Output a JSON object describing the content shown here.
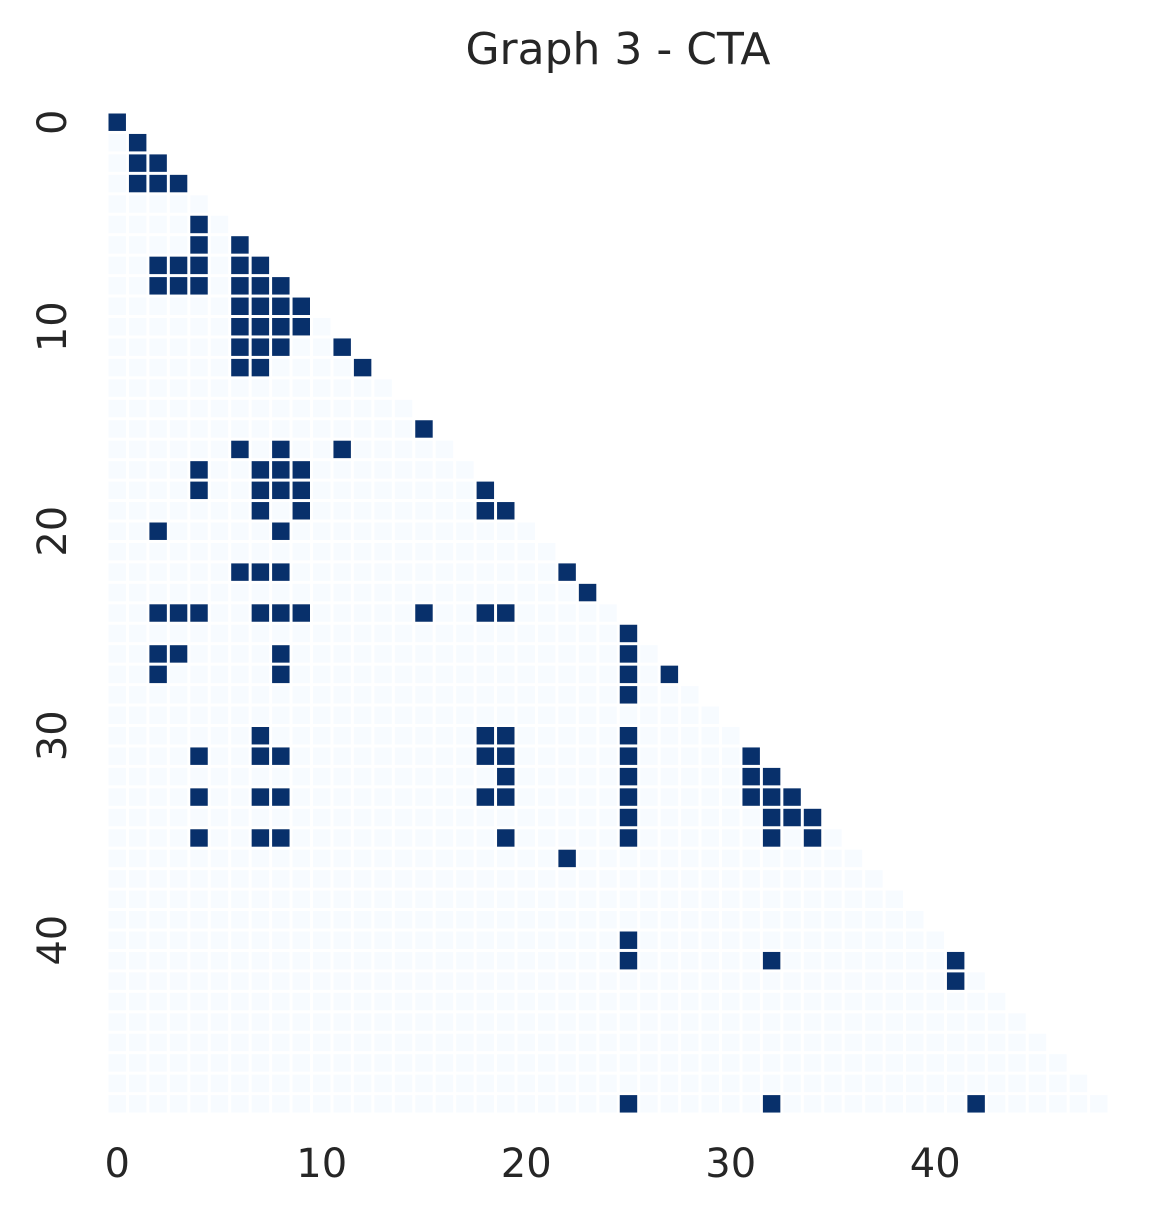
{
  "chart_data": {
    "type": "heatmap",
    "title": "Graph 3 - CTA",
    "colors": [
      "#f7fbff",
      "#08306b"
    ],
    "xticks": [
      0,
      10,
      20,
      30,
      40
    ],
    "yticks": [
      0,
      10,
      20,
      30,
      40
    ],
    "z": [
      [
        1
      ],
      [
        0,
        1
      ],
      [
        0,
        1,
        1
      ],
      [
        0,
        1,
        1,
        1
      ],
      [
        0,
        0,
        0,
        0,
        0
      ],
      [
        0,
        0,
        0,
        0,
        1,
        0
      ],
      [
        0,
        0,
        0,
        0,
        1,
        0,
        1
      ],
      [
        0,
        0,
        1,
        1,
        1,
        0,
        1,
        1
      ],
      [
        0,
        0,
        1,
        1,
        1,
        0,
        1,
        1,
        1
      ],
      [
        0,
        0,
        0,
        0,
        0,
        0,
        1,
        1,
        1,
        1
      ],
      [
        0,
        0,
        0,
        0,
        0,
        0,
        1,
        1,
        1,
        1,
        0
      ],
      [
        0,
        0,
        0,
        0,
        0,
        0,
        1,
        1,
        1,
        0,
        0,
        1
      ],
      [
        0,
        0,
        0,
        0,
        0,
        0,
        1,
        1,
        0,
        0,
        0,
        0,
        1
      ],
      [
        0,
        0,
        0,
        0,
        0,
        0,
        0,
        0,
        0,
        0,
        0,
        0,
        0,
        0
      ],
      [
        0,
        0,
        0,
        0,
        0,
        0,
        0,
        0,
        0,
        0,
        0,
        0,
        0,
        0,
        0
      ],
      [
        0,
        0,
        0,
        0,
        0,
        0,
        0,
        0,
        0,
        0,
        0,
        0,
        0,
        0,
        0,
        1
      ],
      [
        0,
        0,
        0,
        0,
        0,
        0,
        1,
        0,
        1,
        0,
        0,
        1,
        0,
        0,
        0,
        0,
        0
      ],
      [
        0,
        0,
        0,
        0,
        1,
        0,
        0,
        1,
        1,
        1,
        0,
        0,
        0,
        0,
        0,
        0,
        0,
        0
      ],
      [
        0,
        0,
        0,
        0,
        1,
        0,
        0,
        1,
        1,
        1,
        0,
        0,
        0,
        0,
        0,
        0,
        0,
        0,
        1
      ],
      [
        0,
        0,
        0,
        0,
        0,
        0,
        0,
        1,
        0,
        1,
        0,
        0,
        0,
        0,
        0,
        0,
        0,
        0,
        1,
        1
      ],
      [
        0,
        0,
        1,
        0,
        0,
        0,
        0,
        0,
        1,
        0,
        0,
        0,
        0,
        0,
        0,
        0,
        0,
        0,
        0,
        0,
        0
      ],
      [
        0,
        0,
        0,
        0,
        0,
        0,
        0,
        0,
        0,
        0,
        0,
        0,
        0,
        0,
        0,
        0,
        0,
        0,
        0,
        0,
        0,
        0
      ],
      [
        0,
        0,
        0,
        0,
        0,
        0,
        1,
        1,
        1,
        0,
        0,
        0,
        0,
        0,
        0,
        0,
        0,
        0,
        0,
        0,
        0,
        0,
        1
      ],
      [
        0,
        0,
        0,
        0,
        0,
        0,
        0,
        0,
        0,
        0,
        0,
        0,
        0,
        0,
        0,
        0,
        0,
        0,
        0,
        0,
        0,
        0,
        0,
        1
      ],
      [
        0,
        0,
        1,
        1,
        1,
        0,
        0,
        1,
        1,
        1,
        0,
        0,
        0,
        0,
        0,
        1,
        0,
        0,
        1,
        1,
        0,
        0,
        0,
        0,
        0
      ],
      [
        0,
        0,
        0,
        0,
        0,
        0,
        0,
        0,
        0,
        0,
        0,
        0,
        0,
        0,
        0,
        0,
        0,
        0,
        0,
        0,
        0,
        0,
        0,
        0,
        0,
        1
      ],
      [
        0,
        0,
        1,
        1,
        0,
        0,
        0,
        0,
        1,
        0,
        0,
        0,
        0,
        0,
        0,
        0,
        0,
        0,
        0,
        0,
        0,
        0,
        0,
        0,
        0,
        1,
        0
      ],
      [
        0,
        0,
        1,
        0,
        0,
        0,
        0,
        0,
        1,
        0,
        0,
        0,
        0,
        0,
        0,
        0,
        0,
        0,
        0,
        0,
        0,
        0,
        0,
        0,
        0,
        1,
        0,
        1
      ],
      [
        0,
        0,
        0,
        0,
        0,
        0,
        0,
        0,
        0,
        0,
        0,
        0,
        0,
        0,
        0,
        0,
        0,
        0,
        0,
        0,
        0,
        0,
        0,
        0,
        0,
        1,
        0,
        0,
        0
      ],
      [
        0,
        0,
        0,
        0,
        0,
        0,
        0,
        0,
        0,
        0,
        0,
        0,
        0,
        0,
        0,
        0,
        0,
        0,
        0,
        0,
        0,
        0,
        0,
        0,
        0,
        0,
        0,
        0,
        0,
        0
      ],
      [
        0,
        0,
        0,
        0,
        0,
        0,
        0,
        1,
        0,
        0,
        0,
        0,
        0,
        0,
        0,
        0,
        0,
        0,
        1,
        1,
        0,
        0,
        0,
        0,
        0,
        1,
        0,
        0,
        0,
        0,
        0
      ],
      [
        0,
        0,
        0,
        0,
        1,
        0,
        0,
        1,
        1,
        0,
        0,
        0,
        0,
        0,
        0,
        0,
        0,
        0,
        1,
        1,
        0,
        0,
        0,
        0,
        0,
        1,
        0,
        0,
        0,
        0,
        0,
        1
      ],
      [
        0,
        0,
        0,
        0,
        0,
        0,
        0,
        0,
        0,
        0,
        0,
        0,
        0,
        0,
        0,
        0,
        0,
        0,
        0,
        1,
        0,
        0,
        0,
        0,
        0,
        1,
        0,
        0,
        0,
        0,
        0,
        1,
        1
      ],
      [
        0,
        0,
        0,
        0,
        1,
        0,
        0,
        1,
        1,
        0,
        0,
        0,
        0,
        0,
        0,
        0,
        0,
        0,
        1,
        1,
        0,
        0,
        0,
        0,
        0,
        1,
        0,
        0,
        0,
        0,
        0,
        1,
        1,
        1
      ],
      [
        0,
        0,
        0,
        0,
        0,
        0,
        0,
        0,
        0,
        0,
        0,
        0,
        0,
        0,
        0,
        0,
        0,
        0,
        0,
        0,
        0,
        0,
        0,
        0,
        0,
        1,
        0,
        0,
        0,
        0,
        0,
        0,
        1,
        1,
        1
      ],
      [
        0,
        0,
        0,
        0,
        1,
        0,
        0,
        1,
        1,
        0,
        0,
        0,
        0,
        0,
        0,
        0,
        0,
        0,
        0,
        1,
        0,
        0,
        0,
        0,
        0,
        1,
        0,
        0,
        0,
        0,
        0,
        0,
        1,
        0,
        1,
        0
      ],
      [
        0,
        0,
        0,
        0,
        0,
        0,
        0,
        0,
        0,
        0,
        0,
        0,
        0,
        0,
        0,
        0,
        0,
        0,
        0,
        0,
        0,
        0,
        1,
        0,
        0,
        0,
        0,
        0,
        0,
        0,
        0,
        0,
        0,
        0,
        0,
        0,
        0
      ],
      [
        0,
        0,
        0,
        0,
        0,
        0,
        0,
        0,
        0,
        0,
        0,
        0,
        0,
        0,
        0,
        0,
        0,
        0,
        0,
        0,
        0,
        0,
        0,
        0,
        0,
        0,
        0,
        0,
        0,
        0,
        0,
        0,
        0,
        0,
        0,
        0,
        0,
        0
      ],
      [
        0,
        0,
        0,
        0,
        0,
        0,
        0,
        0,
        0,
        0,
        0,
        0,
        0,
        0,
        0,
        0,
        0,
        0,
        0,
        0,
        0,
        0,
        0,
        0,
        0,
        0,
        0,
        0,
        0,
        0,
        0,
        0,
        0,
        0,
        0,
        0,
        0,
        0,
        0
      ],
      [
        0,
        0,
        0,
        0,
        0,
        0,
        0,
        0,
        0,
        0,
        0,
        0,
        0,
        0,
        0,
        0,
        0,
        0,
        0,
        0,
        0,
        0,
        0,
        0,
        0,
        0,
        0,
        0,
        0,
        0,
        0,
        0,
        0,
        0,
        0,
        0,
        0,
        0,
        0,
        0
      ],
      [
        0,
        0,
        0,
        0,
        0,
        0,
        0,
        0,
        0,
        0,
        0,
        0,
        0,
        0,
        0,
        0,
        0,
        0,
        0,
        0,
        0,
        0,
        0,
        0,
        0,
        1,
        0,
        0,
        0,
        0,
        0,
        0,
        0,
        0,
        0,
        0,
        0,
        0,
        0,
        0,
        0
      ],
      [
        0,
        0,
        0,
        0,
        0,
        0,
        0,
        0,
        0,
        0,
        0,
        0,
        0,
        0,
        0,
        0,
        0,
        0,
        0,
        0,
        0,
        0,
        0,
        0,
        0,
        1,
        0,
        0,
        0,
        0,
        0,
        0,
        1,
        0,
        0,
        0,
        0,
        0,
        0,
        0,
        0,
        1
      ],
      [
        0,
        0,
        0,
        0,
        0,
        0,
        0,
        0,
        0,
        0,
        0,
        0,
        0,
        0,
        0,
        0,
        0,
        0,
        0,
        0,
        0,
        0,
        0,
        0,
        0,
        0,
        0,
        0,
        0,
        0,
        0,
        0,
        0,
        0,
        0,
        0,
        0,
        0,
        0,
        0,
        0,
        1,
        0
      ],
      [
        0,
        0,
        0,
        0,
        0,
        0,
        0,
        0,
        0,
        0,
        0,
        0,
        0,
        0,
        0,
        0,
        0,
        0,
        0,
        0,
        0,
        0,
        0,
        0,
        0,
        0,
        0,
        0,
        0,
        0,
        0,
        0,
        0,
        0,
        0,
        0,
        0,
        0,
        0,
        0,
        0,
        0,
        0,
        0
      ],
      [
        0,
        0,
        0,
        0,
        0,
        0,
        0,
        0,
        0,
        0,
        0,
        0,
        0,
        0,
        0,
        0,
        0,
        0,
        0,
        0,
        0,
        0,
        0,
        0,
        0,
        0,
        0,
        0,
        0,
        0,
        0,
        0,
        0,
        0,
        0,
        0,
        0,
        0,
        0,
        0,
        0,
        0,
        0,
        0,
        0
      ],
      [
        0,
        0,
        0,
        0,
        0,
        0,
        0,
        0,
        0,
        0,
        0,
        0,
        0,
        0,
        0,
        0,
        0,
        0,
        0,
        0,
        0,
        0,
        0,
        0,
        0,
        0,
        0,
        0,
        0,
        0,
        0,
        0,
        0,
        0,
        0,
        0,
        0,
        0,
        0,
        0,
        0,
        0,
        0,
        0,
        0,
        0
      ],
      [
        0,
        0,
        0,
        0,
        0,
        0,
        0,
        0,
        0,
        0,
        0,
        0,
        0,
        0,
        0,
        0,
        0,
        0,
        0,
        0,
        0,
        0,
        0,
        0,
        0,
        0,
        0,
        0,
        0,
        0,
        0,
        0,
        0,
        0,
        0,
        0,
        0,
        0,
        0,
        0,
        0,
        0,
        0,
        0,
        0,
        0,
        0
      ],
      [
        0,
        0,
        0,
        0,
        0,
        0,
        0,
        0,
        0,
        0,
        0,
        0,
        0,
        0,
        0,
        0,
        0,
        0,
        0,
        0,
        0,
        0,
        0,
        0,
        0,
        0,
        0,
        0,
        0,
        0,
        0,
        0,
        0,
        0,
        0,
        0,
        0,
        0,
        0,
        0,
        0,
        0,
        0,
        0,
        0,
        0,
        0,
        0
      ],
      [
        0,
        0,
        0,
        0,
        0,
        0,
        0,
        0,
        0,
        0,
        0,
        0,
        0,
        0,
        0,
        0,
        0,
        0,
        0,
        0,
        0,
        0,
        0,
        0,
        0,
        1,
        0,
        0,
        0,
        0,
        0,
        0,
        1,
        0,
        0,
        0,
        0,
        0,
        0,
        0,
        0,
        0,
        1,
        0,
        0,
        0,
        0,
        0,
        0
      ]
    ]
  }
}
